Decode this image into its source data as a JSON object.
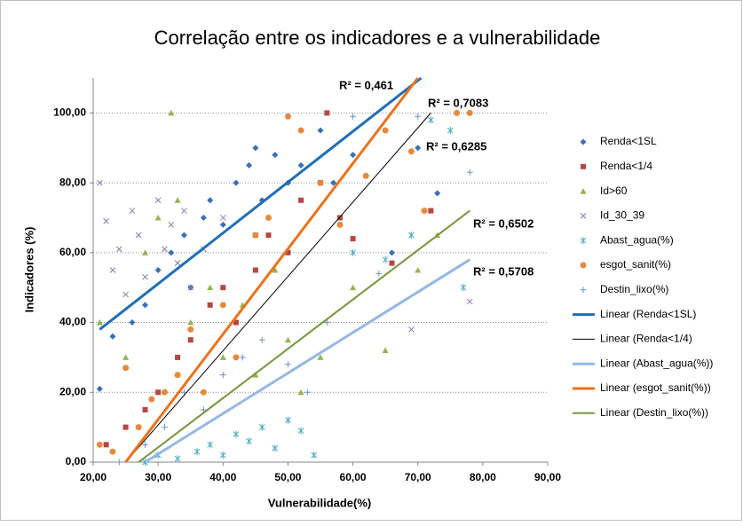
{
  "chart_data": {
    "type": "scatter",
    "title": "Correlação entre os indicadores e a vulnerabilidade",
    "x_label": "Vulnerabilidade(%)",
    "y_label": "Indicadores (%)",
    "xlim": [
      20,
      90
    ],
    "ylim": [
      0,
      110
    ],
    "xticks": [
      {
        "value": 20,
        "label": "20,00"
      },
      {
        "value": 30,
        "label": "30,00"
      },
      {
        "value": 40,
        "label": "40,00"
      },
      {
        "value": 50,
        "label": "50,00"
      },
      {
        "value": 60,
        "label": "60,00"
      },
      {
        "value": 70,
        "label": "70,00"
      },
      {
        "value": 80,
        "label": "80,00"
      },
      {
        "value": 90,
        "label": "90,00"
      }
    ],
    "yticks": [
      {
        "value": 0,
        "label": "0,00"
      },
      {
        "value": 20,
        "label": "20,00"
      },
      {
        "value": 40,
        "label": "40,00"
      },
      {
        "value": 60,
        "label": "60,00"
      },
      {
        "value": 80,
        "label": "80,00"
      },
      {
        "value": 100,
        "label": "100,00"
      }
    ],
    "grid": true,
    "legend": "right",
    "series": [
      {
        "name": "Renda<1SL",
        "color": "#3a6eb5",
        "marker": "diamond",
        "x": [
          21,
          23,
          26,
          28,
          30,
          32,
          34,
          35,
          37,
          38,
          40,
          42,
          44,
          45,
          46,
          48,
          50,
          52,
          55,
          57,
          60,
          66,
          70,
          73
        ],
        "values": [
          21,
          36,
          40,
          45,
          55,
          60,
          65,
          50,
          70,
          75,
          68,
          80,
          85,
          90,
          75,
          88,
          80,
          85,
          95,
          80,
          88,
          60,
          90,
          77
        ]
      },
      {
        "name": "Renda<1/4",
        "color": "#b54644",
        "marker": "square",
        "x": [
          22,
          25,
          28,
          30,
          33,
          35,
          38,
          40,
          42,
          45,
          47,
          50,
          52,
          55,
          56,
          58,
          60,
          66,
          72
        ],
        "values": [
          5,
          10,
          15,
          20,
          30,
          35,
          45,
          50,
          40,
          55,
          65,
          60,
          75,
          80,
          100,
          70,
          64,
          57,
          72
        ]
      },
      {
        "name": "Id>60",
        "color": "#93b451",
        "marker": "triangle",
        "x": [
          21,
          25,
          28,
          30,
          32,
          33,
          35,
          38,
          40,
          43,
          45,
          48,
          50,
          52,
          55,
          60,
          65,
          70,
          73
        ],
        "values": [
          40,
          30,
          60,
          70,
          100,
          75,
          40,
          50,
          30,
          45,
          25,
          55,
          35,
          20,
          30,
          50,
          32,
          55,
          65
        ]
      },
      {
        "name": "Id_30_39",
        "color": "#8a78ad",
        "marker": "cross",
        "x": [
          21,
          22,
          23,
          24,
          25,
          26,
          27,
          28,
          30,
          31,
          32,
          33,
          34,
          35,
          37,
          40,
          45,
          69,
          78
        ],
        "values": [
          80,
          69,
          55,
          61,
          48,
          72,
          65,
          53,
          75,
          61,
          68,
          57,
          72,
          50,
          61,
          70,
          65,
          38,
          46
        ]
      },
      {
        "name": "Abast_agua(%)",
        "color": "#4aa7c0",
        "marker": "asterisk",
        "x": [
          28,
          30,
          33,
          36,
          38,
          40,
          42,
          44,
          46,
          48,
          50,
          52,
          54,
          60,
          65,
          69,
          72,
          75,
          77
        ],
        "values": [
          0,
          2,
          1,
          3,
          5,
          2,
          8,
          6,
          10,
          4,
          12,
          9,
          2,
          60,
          58,
          65,
          98,
          95,
          50
        ]
      },
      {
        "name": "esgot_sanit(%)",
        "color": "#e58a3c",
        "marker": "circle",
        "x": [
          21,
          23,
          25,
          27,
          29,
          31,
          33,
          35,
          37,
          40,
          42,
          45,
          47,
          50,
          52,
          55,
          58,
          62,
          65,
          69,
          71,
          76,
          78
        ],
        "values": [
          5,
          3,
          27,
          10,
          18,
          20,
          25,
          38,
          20,
          45,
          30,
          65,
          70,
          99,
          95,
          80,
          68,
          82,
          95,
          89,
          72,
          100,
          100
        ]
      },
      {
        "name": "Destin_lixo(%)",
        "color": "#6f8fc8",
        "marker": "plus",
        "x": [
          24,
          28,
          31,
          34,
          37,
          40,
          43,
          46,
          50,
          53,
          56,
          60,
          64,
          70,
          78
        ],
        "values": [
          0,
          5,
          10,
          20,
          15,
          25,
          30,
          35,
          28,
          20,
          40,
          99,
          54,
          99,
          83
        ]
      }
    ],
    "trendlines": [
      {
        "name": "Linear (Renda<1SL)",
        "color": "#1f6fb5",
        "width": 3,
        "x": [
          21,
          70.5
        ],
        "values": [
          38,
          110
        ]
      },
      {
        "name": "Linear (Renda<1/4)",
        "color": "#000000",
        "width": 1,
        "x": [
          25,
          72
        ],
        "values": [
          0,
          100
        ]
      },
      {
        "name": "Linear (Abast_agua(%))",
        "color": "#95b8e3",
        "width": 3,
        "x": [
          28,
          78
        ],
        "values": [
          0,
          58
        ]
      },
      {
        "name": "Linear (esgot_sanit(%))",
        "color": "#e9731c",
        "width": 3,
        "x": [
          25,
          70
        ],
        "values": [
          0,
          110
        ]
      },
      {
        "name": "Linear (Destin_lixo(%))",
        "color": "#77963c",
        "width": 2,
        "x": [
          27,
          78
        ],
        "values": [
          0,
          72
        ]
      }
    ],
    "annotations": [
      "R² = 0,461",
      "R² = 0,7083",
      "R² = 0,6285",
      "R² = 0,6502",
      "R² = 0,5708"
    ]
  }
}
